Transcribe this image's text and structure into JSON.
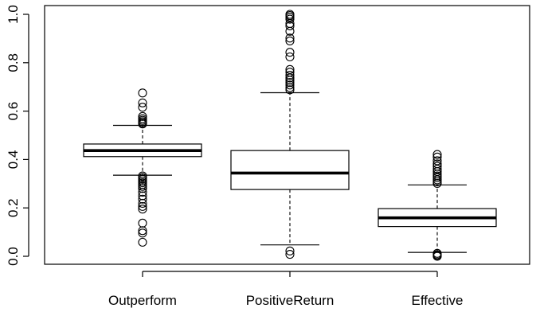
{
  "chart_data": {
    "type": "boxplot",
    "title": "",
    "xlabel": "",
    "ylabel": "",
    "ylim": [
      0,
      1
    ],
    "y_ticks": [
      0.0,
      0.2,
      0.4,
      0.6,
      0.8,
      1.0
    ],
    "y_tick_labels": [
      "0.0",
      "0.2",
      "0.4",
      "0.6",
      "0.8",
      "1.0"
    ],
    "grid": false,
    "legend": "none",
    "colors": {
      "stroke": "#000000",
      "background": "#ffffff"
    },
    "categories": [
      "Outperform",
      "PositiveReturn",
      "Effective"
    ],
    "boxes": [
      {
        "name": "Outperform",
        "whisker_low": 0.335,
        "q1": 0.412,
        "median": 0.437,
        "q3": 0.464,
        "whisker_high": 0.541,
        "outliers": [
          0.675,
          0.634,
          0.616,
          0.578,
          0.569,
          0.562,
          0.556,
          0.551,
          0.547,
          0.332,
          0.325,
          0.318,
          0.311,
          0.304,
          0.297,
          0.289,
          0.28,
          0.265,
          0.25,
          0.236,
          0.219,
          0.206,
          0.195,
          0.137,
          0.106,
          0.096,
          0.058
        ]
      },
      {
        "name": "PositiveReturn",
        "whisker_low": 0.047,
        "q1": 0.276,
        "median": 0.344,
        "q3": 0.437,
        "whisker_high": 0.676,
        "outliers": [
          1.0,
          0.995,
          0.988,
          0.98,
          0.962,
          0.952,
          0.93,
          0.902,
          0.89,
          0.843,
          0.824,
          0.772,
          0.761,
          0.748,
          0.737,
          0.728,
          0.718,
          0.708,
          0.697,
          0.688,
          0.022,
          0.008
        ]
      },
      {
        "name": "Effective",
        "whisker_low": 0.016,
        "q1": 0.123,
        "median": 0.159,
        "q3": 0.197,
        "whisker_high": 0.295,
        "outliers": [
          0.421,
          0.41,
          0.395,
          0.382,
          0.372,
          0.36,
          0.35,
          0.34,
          0.332,
          0.325,
          0.316,
          0.308,
          0.301,
          0.012,
          0.007,
          0.003,
          0.0
        ]
      }
    ]
  }
}
